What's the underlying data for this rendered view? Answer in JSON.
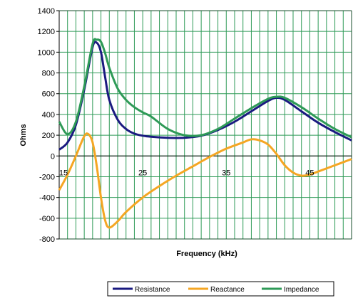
{
  "chart_data": {
    "type": "line",
    "title": "",
    "xlabel": "Frequency (kHz)",
    "ylabel": "Ohms",
    "xlim": [
      15,
      50
    ],
    "ylim": [
      -800,
      1400
    ],
    "x_ticks": [
      15,
      25,
      35,
      45
    ],
    "x_tick_labels": [
      "15",
      "25",
      "35",
      "45"
    ],
    "y_ticks": [
      -800,
      -600,
      -400,
      -200,
      0,
      200,
      400,
      600,
      800,
      1000,
      1200,
      1400
    ],
    "y_tick_labels": [
      "-800",
      "-600",
      "-400",
      "-200",
      "0",
      "200",
      "400",
      "600",
      "800",
      "1000",
      "1200",
      "1400"
    ],
    "grid": true,
    "grid_color": "#2e9a57",
    "legend_position": "bottom",
    "series": [
      {
        "name": "Resistance",
        "color": "#1a1a80",
        "x": [
          15,
          16,
          17,
          18,
          19,
          19.5,
          20,
          20.5,
          21,
          22,
          23,
          24,
          25,
          26,
          28,
          30,
          32,
          34,
          36,
          38,
          40,
          41,
          42,
          44,
          46,
          48,
          50
        ],
        "y": [
          60,
          130,
          300,
          640,
          1050,
          1090,
          1000,
          760,
          540,
          350,
          260,
          215,
          195,
          185,
          175,
          175,
          195,
          250,
          330,
          430,
          530,
          560,
          540,
          430,
          320,
          230,
          150
        ]
      },
      {
        "name": "Reactance",
        "color": "#f5a623",
        "x": [
          15,
          16,
          17,
          18,
          18.5,
          19,
          19.5,
          20,
          20.5,
          21,
          22,
          23,
          25,
          27,
          29,
          31,
          33,
          35,
          37,
          38,
          39,
          40,
          41,
          42,
          43,
          44,
          45,
          46,
          48,
          50
        ],
        "y": [
          -330,
          -180,
          0,
          190,
          210,
          130,
          -100,
          -400,
          -620,
          -690,
          -630,
          -540,
          -400,
          -290,
          -190,
          -100,
          -10,
          70,
          130,
          160,
          150,
          110,
          20,
          -90,
          -160,
          -190,
          -180,
          -150,
          -90,
          -30
        ]
      },
      {
        "name": "Impedance",
        "color": "#2e9a57",
        "x": [
          15,
          16,
          17,
          18,
          19,
          19.5,
          20,
          20.5,
          21,
          22,
          23,
          24,
          25,
          26,
          28,
          30,
          32,
          34,
          36,
          38,
          40,
          41,
          42,
          44,
          46,
          48,
          50
        ],
        "y": [
          330,
          210,
          330,
          670,
          1080,
          1120,
          1100,
          990,
          850,
          650,
          540,
          470,
          420,
          380,
          260,
          200,
          200,
          260,
          360,
          460,
          550,
          570,
          560,
          470,
          360,
          260,
          180
        ]
      }
    ]
  }
}
